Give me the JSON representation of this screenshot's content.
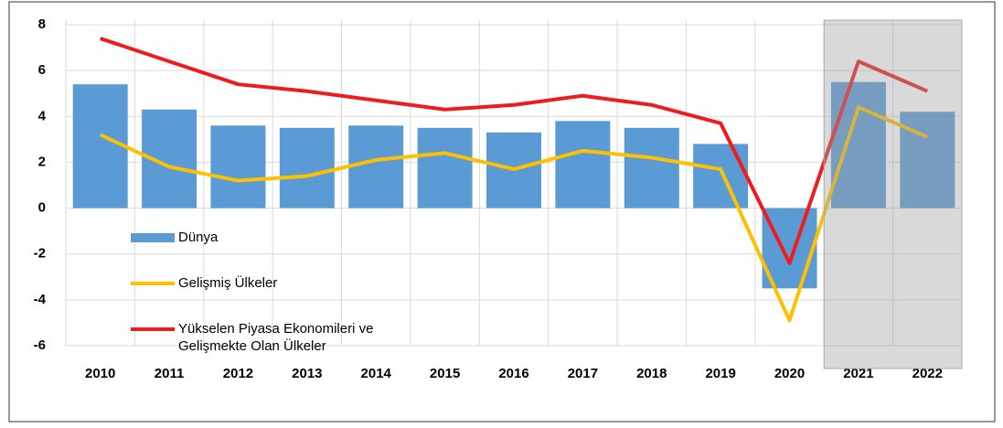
{
  "chart_data": {
    "type": "bar_line",
    "categories": [
      "2010",
      "2011",
      "2012",
      "2013",
      "2014",
      "2015",
      "2016",
      "2017",
      "2018",
      "2019",
      "2020",
      "2021",
      "2022"
    ],
    "series": [
      {
        "name": "Dünya",
        "type": "bar",
        "color": "#5b9bd5",
        "values": [
          5.4,
          4.3,
          3.6,
          3.5,
          3.6,
          3.5,
          3.3,
          3.8,
          3.5,
          2.8,
          -3.5,
          5.5,
          4.2
        ]
      },
      {
        "name": "Gelişmiş Ülkeler",
        "type": "line",
        "color": "#ffc000",
        "values": [
          3.2,
          1.8,
          1.2,
          1.4,
          2.1,
          2.4,
          1.7,
          2.5,
          2.2,
          1.7,
          -4.9,
          4.4,
          3.1
        ]
      },
      {
        "name": "Yükselen Piyasa Ekonomileri ve Gelişmekte Olan Ülkeler",
        "type": "line",
        "color": "#ee1c1c",
        "values": [
          7.4,
          6.4,
          5.4,
          5.1,
          4.7,
          4.3,
          4.5,
          4.9,
          4.5,
          3.7,
          -2.4,
          6.4,
          5.1
        ]
      }
    ],
    "ylim": [
      -6,
      8
    ],
    "yticks": [
      -6,
      -4,
      -2,
      0,
      2,
      4,
      6,
      8
    ],
    "grid": true,
    "shaded": [
      "2021",
      "2022"
    ]
  }
}
